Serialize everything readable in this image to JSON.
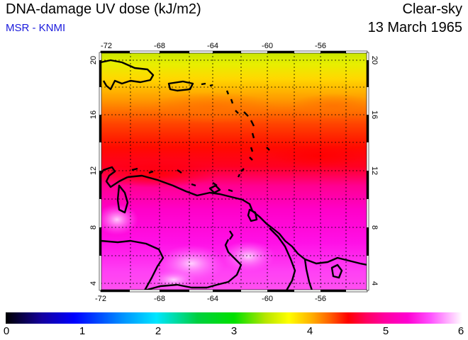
{
  "header": {
    "title": "DNA-damage UV dose (kJ/m2)",
    "credit": "MSR - KNMI",
    "condition": "Clear-sky",
    "date": "13 March 1965"
  },
  "map": {
    "lon_ticks": [
      "-72",
      "-68",
      "-64",
      "-60",
      "-56"
    ],
    "lat_ticks": [
      "20",
      "16",
      "12",
      "8",
      "4"
    ]
  },
  "colorbar": {
    "labels": [
      "0",
      "1",
      "2",
      "3",
      "4",
      "5",
      "6"
    ]
  }
}
